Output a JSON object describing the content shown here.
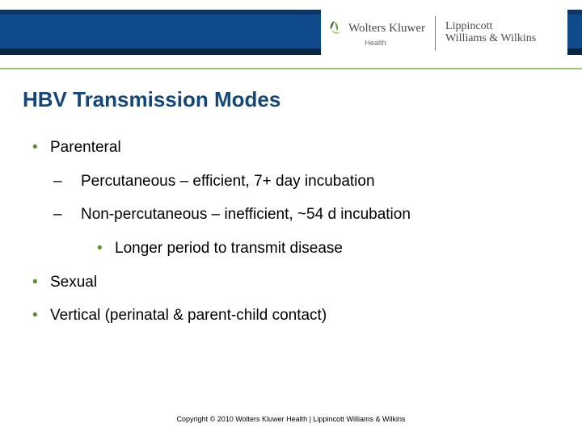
{
  "colors": {
    "band_top": "#0b3666",
    "band_mid": "#0f4a8a",
    "band_bot": "#072845",
    "title": "#12477b",
    "bullet": "#5b8f2e",
    "green_rule": "#9ec56b",
    "leaf_dark": "#3f6f2d",
    "leaf_mid": "#6aa23a",
    "leaf_light": "#a6c96b"
  },
  "brand": {
    "wk_name": "Wolters Kluwer",
    "wk_sub": "Health",
    "lww_line1": "Lippincott",
    "lww_line2": "Williams & Wilkins"
  },
  "title": "HBV Transmission Modes",
  "bullets": {
    "l1a": "Parenteral",
    "l2a": "Percutaneous – efficient, 7+ day incubation",
    "l2b": "Non-percutaneous – inefficient, ~54 d incubation",
    "l3a": "Longer period to transmit disease",
    "l1b": "Sexual",
    "l1c": "Vertical (perinatal & parent-child contact)"
  },
  "copyright": "Copyright © 2010 Wolters Kluwer Health | Lippincott Williams & Wilkins"
}
